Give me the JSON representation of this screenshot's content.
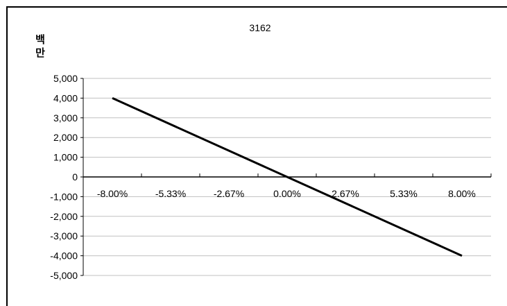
{
  "chart_data": {
    "type": "line",
    "title": "3162",
    "ylabel_lines": [
      "백",
      "만"
    ],
    "xlabel": "",
    "x_ticks": [
      "-8.00%",
      "-5.33%",
      "-2.67%",
      "0.00%",
      "2.67%",
      "5.33%",
      "8.00%"
    ],
    "y_ticks": [
      "5,000",
      "4,000",
      "3,000",
      "2,000",
      "1,000",
      "0",
      "-1,000",
      "-2,000",
      "-3,000",
      "-4,000",
      "-5,000"
    ],
    "ylim": [
      -5000,
      5000
    ],
    "xlim": [
      -8,
      8
    ],
    "grid": true,
    "legend": "none",
    "series": [
      {
        "x": [
          -8,
          8
        ],
        "values": [
          4000,
          -4000
        ]
      }
    ]
  },
  "colors": {
    "line": "#000000",
    "grid": "#c0c0c0",
    "text": "#000000"
  }
}
